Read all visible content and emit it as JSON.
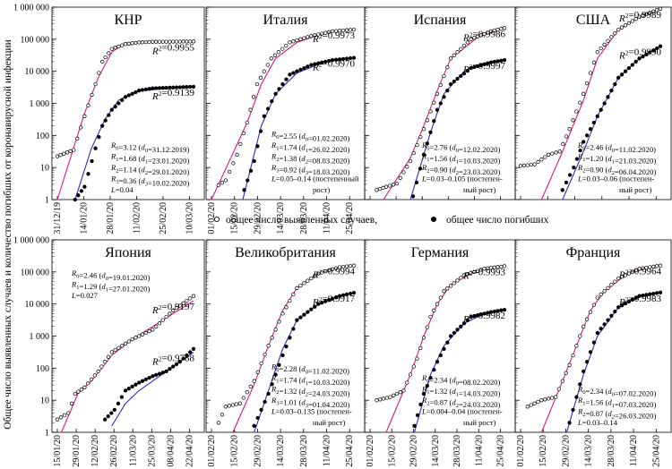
{
  "y_axis_label": "Общее число выявленных случаев и количество погибших от коронавирусной инфекции",
  "y_tick_labels": [
    "1 000 000",
    "100 000",
    "10 000",
    "1 000",
    "100",
    "10",
    "1"
  ],
  "legend": {
    "cases_label": "общее число выявленных случаев,",
    "deaths_label": "общее число погибших"
  },
  "colors": {
    "cases_fit": "#e0187f",
    "deaths_fit": "#3a22c8",
    "markers": "#000000"
  },
  "chart_data": [
    {
      "type": "scatter",
      "title": "КНР",
      "yscale": "log",
      "ylim": [
        1,
        1000000
      ],
      "x_tick_labels": [
        "31/12/19",
        "14/01/20",
        "28/01/20",
        "11/02/20",
        "25/02/20",
        "10/03/20"
      ],
      "r2": [
        "R2=0.9955",
        "R2=0.9139"
      ],
      "annotation": [
        "R0=3.12 (d0=31.12.2019)",
        "R1=1.68 (d1=23.01.2020)",
        "R2=1.14 (d2=29.01.2020)",
        "R3=0.36 (d3=10.02.2020)",
        "L=0.04"
      ],
      "cases_t": [
        0,
        0.12,
        0.2,
        0.28,
        0.33,
        0.4,
        0.5,
        0.6,
        0.7,
        1
      ],
      "cases_log": [
        1.35,
        1.55,
        2.6,
        3.6,
        4.3,
        4.7,
        4.85,
        4.9,
        4.92,
        4.93
      ],
      "deaths_t": [
        0.13,
        0.2,
        0.28,
        0.33,
        0.4,
        0.5,
        0.6,
        0.7,
        1
      ],
      "deaths_log": [
        0,
        0.4,
        1.6,
        2.3,
        2.8,
        3.2,
        3.4,
        3.47,
        3.52
      ],
      "case_fit_t": [
        0,
        0.2,
        0.3,
        0.4,
        0.5,
        1
      ],
      "case_fit_log": [
        0,
        2.7,
        3.8,
        4.6,
        4.88,
        4.93
      ],
      "death_fit_t": [
        0.13,
        0.25,
        0.35,
        0.45,
        0.6,
        1
      ],
      "death_fit_log": [
        0,
        1.6,
        2.5,
        3.1,
        3.4,
        3.52
      ]
    },
    {
      "type": "scatter",
      "title": "Италия",
      "yscale": "log",
      "ylim": [
        1,
        1000000
      ],
      "x_tick_labels": [
        "01/02/20",
        "15/02/20",
        "29/02/20",
        "14/03/20",
        "28/03/20",
        "11/04/20",
        "25/04/20"
      ],
      "r2": [
        "R2=0.9973",
        "R2=0.9970"
      ],
      "annotation": [
        "R0=2.55 (d0=01.02.2020)",
        "R1=1.74 (d1=26.02.2020)",
        "R2=1.38 (d2=08.03.2020)",
        "R3=0.92 (d3=18.03.2020)",
        "L=0.05–0.14 (постепенный",
        "рост)"
      ],
      "cases_t": [
        0.05,
        0.1,
        0.18,
        0.25,
        0.32,
        0.42,
        0.55,
        0.7,
        0.85,
        1
      ],
      "cases_log": [
        0.45,
        0.6,
        1.4,
        2.4,
        3.6,
        4.4,
        4.9,
        5.1,
        5.25,
        5.3
      ],
      "deaths_t": [
        0.23,
        0.3,
        0.37,
        0.45,
        0.55,
        0.7,
        0.85,
        1
      ],
      "deaths_log": [
        0.3,
        1.2,
        2.6,
        3.3,
        3.9,
        4.2,
        4.35,
        4.42
      ],
      "case_fit_t": [
        0,
        0.25,
        0.35,
        0.45,
        0.6,
        0.8,
        1
      ],
      "case_fit_log": [
        0,
        2.4,
        3.6,
        4.4,
        4.9,
        5.2,
        5.3
      ],
      "death_fit_t": [
        0.22,
        0.35,
        0.45,
        0.6,
        0.8,
        1
      ],
      "death_fit_log": [
        0,
        2.3,
        3.3,
        3.95,
        4.3,
        4.42
      ]
    },
    {
      "type": "scatter",
      "title": "Испания",
      "yscale": "log",
      "ylim": [
        1,
        1000000
      ],
      "x_tick_labels": [],
      "r2": [
        "R2=0.9986",
        "R2=0.9997"
      ],
      "annotation": [
        "R0=2.76 (d0=12.02.2020)",
        "R1=1.56 (d1=10.03.2020)",
        "R2=0.90 (d2=23.03.2020)",
        "L=0.03–0.105 (постепен-",
        "ный рост)"
      ],
      "cases_t": [
        0.05,
        0.12,
        0.2,
        0.3,
        0.4,
        0.5,
        0.6,
        0.75,
        0.9,
        1
      ],
      "cases_log": [
        0.3,
        0.4,
        0.5,
        1.2,
        2.2,
        3.3,
        4.4,
        5,
        5.25,
        5.35
      ],
      "deaths_t": [
        0.32,
        0.4,
        0.5,
        0.6,
        0.75,
        0.9,
        1
      ],
      "deaths_log": [
        0.1,
        1.4,
        2.8,
        3.6,
        4.1,
        4.28,
        4.35
      ],
      "case_fit_t": [
        0.1,
        0.3,
        0.4,
        0.5,
        0.6,
        0.8,
        1
      ],
      "case_fit_log": [
        0,
        1.3,
        2.3,
        3.4,
        4.4,
        5.05,
        5.35
      ],
      "death_fit_t": [
        0.3,
        0.45,
        0.55,
        0.7,
        0.9,
        1
      ],
      "death_fit_log": [
        0,
        2.1,
        3.3,
        4,
        4.3,
        4.35
      ]
    },
    {
      "type": "scatter",
      "title": "США",
      "yscale": "log",
      "ylim": [
        1,
        1000000
      ],
      "x_tick_labels": [],
      "r2": [
        "R2=0.9989",
        "R2=0.9990"
      ],
      "annotation": [
        "R0=2.46 (d0=11.02.2020)",
        "R1=1.20 (d1=21.03.2020)",
        "R2=0.90 (d2=06.04.2020)",
        "L=0.03–0.06 (постепен-",
        "ный рост)"
      ],
      "cases_t": [
        0,
        0.1,
        0.2,
        0.28,
        0.35,
        0.45,
        0.55,
        0.7,
        0.85,
        1
      ],
      "cases_log": [
        1.05,
        1.1,
        1.4,
        1.5,
        2.2,
        3.3,
        4.6,
        5.3,
        5.7,
        5.95
      ],
      "deaths_t": [
        0.3,
        0.38,
        0.45,
        0.55,
        0.7,
        0.85,
        1
      ],
      "deaths_log": [
        0.3,
        1,
        1.8,
        2.6,
        3.8,
        4.4,
        4.78
      ],
      "case_fit_t": [
        0.15,
        0.3,
        0.45,
        0.55,
        0.7,
        0.85,
        1
      ],
      "case_fit_log": [
        0,
        1.5,
        3.1,
        4.4,
        5.3,
        5.7,
        5.95
      ],
      "death_fit_t": [
        0.3,
        0.45,
        0.55,
        0.7,
        0.85,
        1
      ],
      "death_fit_log": [
        0,
        1.5,
        2.6,
        3.8,
        4.4,
        4.78
      ]
    },
    {
      "type": "scatter",
      "title": "Япония",
      "yscale": "log",
      "ylim": [
        1,
        1000000
      ],
      "x_tick_labels": [
        "15/01/20",
        "29/01/20",
        "12/02/20",
        "26/02/20",
        "11/03/20",
        "25/03/20",
        "08/04/20",
        "22/04/20"
      ],
      "r2": [
        "R2=0.9197",
        "R2=0.9788"
      ],
      "annotation": [
        "R0=2.46 (d0=19.01.2020)",
        "R1=1.29 (d1=27.01.2020)",
        "L=0.027"
      ],
      "cases_t": [
        0,
        0.08,
        0.13,
        0.2,
        0.3,
        0.4,
        0.55,
        0.7,
        0.85,
        1
      ],
      "cases_log": [
        0.4,
        0.6,
        1.2,
        1.4,
        1.9,
        2.5,
        2.9,
        3.2,
        3.8,
        4.25
      ],
      "deaths_t": [
        0.35,
        0.42,
        0.5,
        0.6,
        0.7,
        0.8,
        0.9,
        1
      ],
      "deaths_log": [
        0.4,
        0.7,
        1.3,
        1.55,
        1.75,
        1.9,
        2.2,
        2.6
      ],
      "case_fit_t": [
        0.03,
        0.15,
        0.25,
        0.4,
        0.55,
        0.7,
        0.85,
        1
      ],
      "case_fit_log": [
        0,
        1.2,
        1.6,
        2.4,
        2.9,
        3.3,
        3.7,
        4.1
      ],
      "death_fit_t": [
        0.4,
        0.5,
        0.6,
        0.7,
        0.8,
        0.9,
        1
      ],
      "death_fit_log": [
        0.2,
        0.9,
        1.3,
        1.6,
        1.9,
        2.2,
        2.5
      ]
    },
    {
      "type": "scatter",
      "title": "Великобритания",
      "yscale": "log",
      "ylim": [
        1,
        1000000
      ],
      "x_tick_labels": [
        "01/02/20",
        "15/02/20",
        "29/02/20",
        "14/03/20",
        "28/03/20",
        "11/04/20",
        "25/04/20"
      ],
      "r2": [
        "R2=0.9994",
        "R2=0.9917"
      ],
      "annotation": [
        "R0=2.28 (d0=11.02.2020)",
        "R1=1.74 (d1=10.03.2020)",
        "R2=1.32 (d2=24.03.2020)",
        "R3=1.01 (d3=01.04.2020)",
        "L=0.03–0.135 (постепен-",
        "ный рост)"
      ],
      "cases_t": [
        0.05,
        0.1,
        0.2,
        0.3,
        0.4,
        0.5,
        0.6,
        0.75,
        0.9,
        1
      ],
      "cases_log": [
        0.3,
        0.8,
        0.9,
        1.6,
        2.7,
        3.7,
        4.5,
        4.95,
        5.15,
        5.2
      ],
      "deaths_t": [
        0.3,
        0.4,
        0.5,
        0.6,
        0.75,
        0.9,
        1
      ],
      "deaths_log": [
        0.2,
        1.2,
        2.4,
        3.5,
        4,
        4.25,
        4.35
      ],
      "case_fit_t": [
        0.15,
        0.3,
        0.4,
        0.5,
        0.6,
        0.75,
        0.9,
        1
      ],
      "case_fit_log": [
        0,
        1.5,
        2.7,
        3.8,
        4.5,
        4.95,
        5.15,
        5.2
      ],
      "death_fit_t": [
        0.3,
        0.4,
        0.5,
        0.6,
        0.75,
        0.9,
        1
      ],
      "death_fit_log": [
        0,
        1.3,
        2.6,
        3.5,
        4,
        4.25,
        4.35
      ]
    },
    {
      "type": "scatter",
      "title": "Германия",
      "yscale": "log",
      "ylim": [
        1,
        1000000
      ],
      "x_tick_labels": [
        "01/02/20",
        "15/02/20",
        "29/02/20",
        "14/03/20",
        "28/03/20",
        "11/04/20",
        "25/04/20"
      ],
      "r2": [
        "R2=0.9993",
        "R2=0.9982"
      ],
      "annotation": [
        "R0=2.34 (d0=08.02.2020)",
        "R1=1.32 (d1=14.03.2020)",
        "R2=0.87 (d2=24.03.2020)",
        "L=0.004–0.04 (постепен-",
        "ный рост)"
      ],
      "cases_t": [
        0.05,
        0.15,
        0.25,
        0.35,
        0.45,
        0.55,
        0.7,
        0.85,
        1
      ],
      "cases_log": [
        1,
        1.1,
        1.3,
        2.3,
        3.6,
        4.4,
        4.9,
        5.1,
        5.18
      ],
      "deaths_t": [
        0.33,
        0.4,
        0.5,
        0.6,
        0.75,
        0.9,
        1
      ],
      "deaths_log": [
        0.2,
        1.2,
        2.2,
        3,
        3.6,
        3.75,
        3.82
      ],
      "case_fit_t": [
        0.12,
        0.3,
        0.4,
        0.5,
        0.6,
        0.75,
        0.9,
        1
      ],
      "case_fit_log": [
        0,
        1.8,
        3,
        4,
        4.6,
        4.95,
        5.12,
        5.18
      ],
      "death_fit_t": [
        0.33,
        0.45,
        0.55,
        0.7,
        0.85,
        1
      ],
      "death_fit_log": [
        0,
        1.8,
        2.7,
        3.4,
        3.7,
        3.82
      ]
    },
    {
      "type": "scatter",
      "title": "Франция",
      "yscale": "log",
      "ylim": [
        1,
        1000000
      ],
      "x_tick_labels": [
        "01/02/20",
        "15/02/20",
        "29/02/20",
        "14/03/20",
        "28/03/20",
        "11/04/20",
        "25/04/20"
      ],
      "r2": [
        "R2=0.9964",
        "R2=0.9983"
      ],
      "annotation": [
        "R0=2.34 (d0=07.02.2020)",
        "R1=1.56 (d1=07.03.2020)",
        "R2=0.87 (d2=26.03.2020)",
        "L=0.03–0.14"
      ],
      "cases_t": [
        0.05,
        0.15,
        0.25,
        0.35,
        0.45,
        0.55,
        0.7,
        0.85,
        1
      ],
      "cases_log": [
        0.8,
        1,
        1.1,
        2.1,
        3.3,
        4.2,
        4.8,
        5.1,
        5.2
      ],
      "deaths_t": [
        0.35,
        0.45,
        0.55,
        0.7,
        0.85,
        1
      ],
      "deaths_log": [
        0.3,
        1.9,
        3.1,
        3.9,
        4.25,
        4.36
      ],
      "case_fit_t": [
        0.15,
        0.3,
        0.4,
        0.5,
        0.6,
        0.75,
        0.9,
        1
      ],
      "case_fit_log": [
        0,
        1.6,
        2.7,
        3.8,
        4.4,
        4.9,
        5.12,
        5.2
      ],
      "death_fit_t": [
        0.33,
        0.45,
        0.55,
        0.7,
        0.85,
        1
      ],
      "death_fit_log": [
        0,
        1.8,
        3,
        3.9,
        4.25,
        4.36
      ]
    }
  ]
}
